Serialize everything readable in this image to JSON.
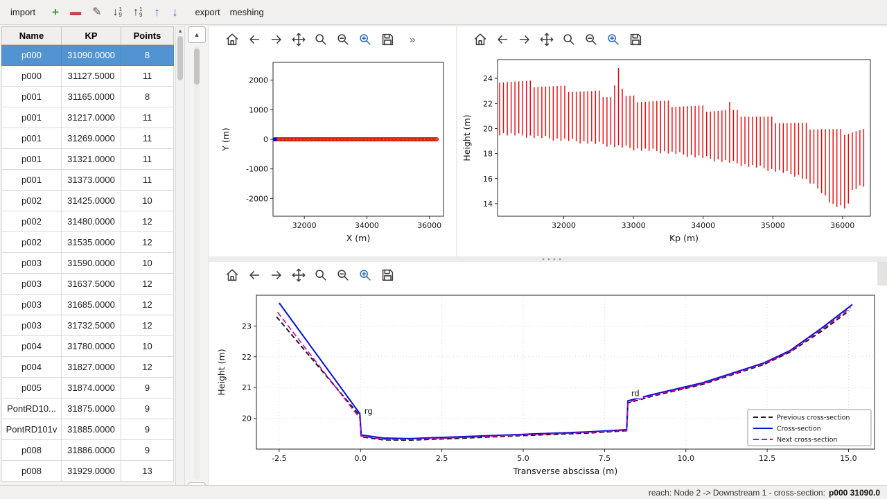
{
  "app": {
    "toolbar": {
      "import_label": "import",
      "export_label": "export",
      "meshing_label": "meshing",
      "icons": [
        {
          "name": "add-cross-section-button",
          "icon": "add-icon",
          "glyph": "+",
          "color": "#2e9e2e",
          "bold": true
        },
        {
          "name": "remove-cross-section-button",
          "icon": "remove-icon",
          "glyph": "▬",
          "color": "#cc4444"
        },
        {
          "name": "edit-button",
          "icon": "edit-icon",
          "glyph": "✎",
          "color": "#555555"
        },
        {
          "name": "sort-descending-button",
          "icon": "sort-descending-icon",
          "glyph": "↓",
          "digits": [
            "1",
            "9"
          ],
          "color": "#333333"
        },
        {
          "name": "sort-ascending-button",
          "icon": "sort-ascending-icon",
          "glyph": "↑",
          "digits": [
            "1",
            "9"
          ],
          "color": "#333333"
        },
        {
          "name": "shift-up-button",
          "icon": "arrow-up-icon",
          "glyph": "↑",
          "color": "#2f6fc1",
          "bold": true
        },
        {
          "name": "shift-down-button",
          "icon": "arrow-down-icon",
          "glyph": "↓",
          "color": "#2f6fc1",
          "bold": true
        }
      ]
    },
    "statusbar": {
      "prefix": "reach: Node 2 -> Downstream 1 - cross-section:",
      "highlight": "p000 31090.0"
    }
  },
  "scroll": {
    "up_glyph": "▲",
    "down_glyph": "▼"
  },
  "table": {
    "headers": [
      "Name",
      "KP",
      "Points"
    ],
    "selected_row": 0,
    "rows": [
      [
        "p000",
        "31090.0000",
        "8"
      ],
      [
        "p000",
        "31127.5000",
        "11"
      ],
      [
        "p001",
        "31165.0000",
        "8"
      ],
      [
        "p001",
        "31217.0000",
        "11"
      ],
      [
        "p001",
        "31269.0000",
        "11"
      ],
      [
        "p001",
        "31321.0000",
        "11"
      ],
      [
        "p001",
        "31373.0000",
        "11"
      ],
      [
        "p002",
        "31425.0000",
        "10"
      ],
      [
        "p002",
        "31480.0000",
        "12"
      ],
      [
        "p002",
        "31535.0000",
        "12"
      ],
      [
        "p003",
        "31590.0000",
        "10"
      ],
      [
        "p003",
        "31637.5000",
        "12"
      ],
      [
        "p003",
        "31685.0000",
        "12"
      ],
      [
        "p003",
        "31732.5000",
        "12"
      ],
      [
        "p004",
        "31780.0000",
        "10"
      ],
      [
        "p004",
        "31827.0000",
        "12"
      ],
      [
        "p005",
        "31874.0000",
        "9"
      ],
      [
        "PontRD10...",
        "31875.0000",
        "9"
      ],
      [
        "PontRD101v",
        "31885.0000",
        "9"
      ],
      [
        "p008",
        "31886.0000",
        "9"
      ],
      [
        "p008",
        "31929.0000",
        "13"
      ]
    ]
  },
  "plot_toolbar": {
    "icons": [
      "home",
      "back",
      "forward",
      "pan",
      "zoom",
      "zoom-out",
      "zoom-in",
      "save"
    ],
    "overflow": "»"
  },
  "chart_data": [
    {
      "type": "scatter",
      "title": "",
      "xlabel": "X (m)",
      "ylabel": "Y (m)",
      "xlim": [
        31000,
        36450
      ],
      "ylim": [
        -2600,
        2600
      ],
      "xticks": [
        32000,
        34000,
        36000
      ],
      "yticks": [
        -2000,
        -1000,
        0,
        1000,
        2000
      ],
      "series": [
        {
          "name": "reach-axis-line",
          "type": "line",
          "color": "#0000ee",
          "width": 1.6,
          "points": [
            [
              31060,
              0
            ],
            [
              36250,
              0
            ]
          ]
        },
        {
          "name": "cross-section-positions",
          "type": "scatter-run",
          "color": "#ff4422",
          "edge": "#b31500",
          "x_start": 31100,
          "x_end": 36230,
          "count": 115,
          "y": 0,
          "r": 2.6
        },
        {
          "name": "upstream-marker",
          "type": "scatter",
          "color": "#0000ee",
          "points": [
            [
              31060,
              0
            ]
          ],
          "r": 3
        }
      ]
    },
    {
      "type": "bar",
      "title": "",
      "xlabel": "Kp (m)",
      "ylabel": "Height (m)",
      "xlim": [
        31050,
        36400
      ],
      "ylim": [
        13,
        25.5
      ],
      "xticks": [
        32000,
        33000,
        34000,
        35000,
        36000
      ],
      "yticks": [
        14,
        16,
        18,
        20,
        22,
        24
      ],
      "bars": {
        "color": "#ee0000",
        "step": 55,
        "x_start": 31080,
        "x_end": 36280,
        "top_envelope": [
          [
            31080,
            23.9
          ],
          [
            31500,
            23.6
          ],
          [
            32000,
            23.2
          ],
          [
            32500,
            22.8
          ],
          [
            32700,
            22.6
          ],
          [
            32780,
            25.0
          ],
          [
            32860,
            22.5
          ],
          [
            33000,
            22.4
          ],
          [
            33500,
            22.0
          ],
          [
            34000,
            21.6
          ],
          [
            34340,
            21.4
          ],
          [
            34370,
            22.15
          ],
          [
            34430,
            21.3
          ],
          [
            35000,
            20.7
          ],
          [
            35500,
            20.2
          ],
          [
            36000,
            19.7
          ],
          [
            36280,
            19.9
          ]
        ],
        "bottom_envelope": [
          [
            31080,
            19.6
          ],
          [
            31500,
            19.4
          ],
          [
            32000,
            19.1
          ],
          [
            32500,
            18.8
          ],
          [
            33000,
            18.4
          ],
          [
            33500,
            18.1
          ],
          [
            34000,
            17.7
          ],
          [
            34500,
            17.2
          ],
          [
            35000,
            16.7
          ],
          [
            35400,
            16.2
          ],
          [
            35700,
            15.0
          ],
          [
            35850,
            13.9
          ],
          [
            36050,
            13.6
          ],
          [
            36150,
            15.2
          ],
          [
            36280,
            15.4
          ]
        ]
      }
    },
    {
      "type": "line",
      "title": "",
      "xlabel": "Transverse abscissa (m)",
      "ylabel": "Height (m)",
      "xlim": [
        -3.2,
        15.8
      ],
      "ylim": [
        19.0,
        24.0
      ],
      "xticks": [
        -2.5,
        0.0,
        2.5,
        5.0,
        7.5,
        10.0,
        12.5,
        15.0
      ],
      "xtick_decimals": 1,
      "yticks": [
        20,
        21,
        22,
        23
      ],
      "grid": true,
      "series": [
        {
          "name": "Previous cross-section",
          "color": "#1a1a1a",
          "dash": "7 4",
          "width": 2,
          "points": [
            [
              -2.58,
              23.3
            ],
            [
              -0.02,
              20.08
            ],
            [
              0.02,
              19.4
            ],
            [
              0.7,
              19.3
            ],
            [
              1.5,
              19.29
            ],
            [
              3.0,
              19.35
            ],
            [
              5.0,
              19.44
            ],
            [
              7.0,
              19.52
            ],
            [
              8.18,
              19.6
            ],
            [
              8.22,
              20.5
            ],
            [
              9.0,
              20.73
            ],
            [
              10.5,
              21.1
            ],
            [
              12.4,
              21.75
            ],
            [
              13.2,
              22.15
            ],
            [
              14.2,
              22.85
            ],
            [
              15.02,
              23.5
            ]
          ]
        },
        {
          "name": "Cross-section",
          "color": "#0011dd",
          "dash": "",
          "width": 2,
          "points": [
            [
              -2.5,
              23.75
            ],
            [
              -0.02,
              20.15
            ],
            [
              0.02,
              19.46
            ],
            [
              0.7,
              19.36
            ],
            [
              1.5,
              19.34
            ],
            [
              3.0,
              19.4
            ],
            [
              5.0,
              19.48
            ],
            [
              7.0,
              19.56
            ],
            [
              8.18,
              19.63
            ],
            [
              8.22,
              20.57
            ],
            [
              9.0,
              20.78
            ],
            [
              10.5,
              21.15
            ],
            [
              12.4,
              21.8
            ],
            [
              13.2,
              22.2
            ],
            [
              14.2,
              22.95
            ],
            [
              15.12,
              23.7
            ]
          ]
        },
        {
          "name": "Next cross-section",
          "color": "#cc00aa",
          "dash": "8 4",
          "width": 1.6,
          "points": [
            [
              -2.55,
              23.45
            ],
            [
              -0.02,
              20.0
            ],
            [
              0.02,
              19.42
            ],
            [
              0.7,
              19.32
            ],
            [
              1.5,
              19.31
            ],
            [
              3.0,
              19.37
            ],
            [
              5.0,
              19.46
            ],
            [
              7.0,
              19.54
            ],
            [
              8.18,
              19.61
            ],
            [
              8.22,
              20.52
            ],
            [
              9.0,
              20.75
            ],
            [
              10.5,
              21.12
            ],
            [
              12.4,
              21.77
            ],
            [
              13.2,
              22.17
            ],
            [
              14.2,
              22.9
            ],
            [
              15.07,
              23.6
            ]
          ]
        }
      ],
      "annotations": [
        {
          "text": "rg",
          "x": 0.12,
          "y": 20.15,
          "color": "#00a0a8",
          "box": false
        },
        {
          "text": "rd",
          "x": 8.32,
          "y": 20.72,
          "color": "#1a1a1a",
          "box": true
        }
      ],
      "legend": {
        "position": "bottom-right",
        "entries": [
          "Previous cross-section",
          "Cross-section",
          "Next cross-section"
        ]
      }
    }
  ]
}
